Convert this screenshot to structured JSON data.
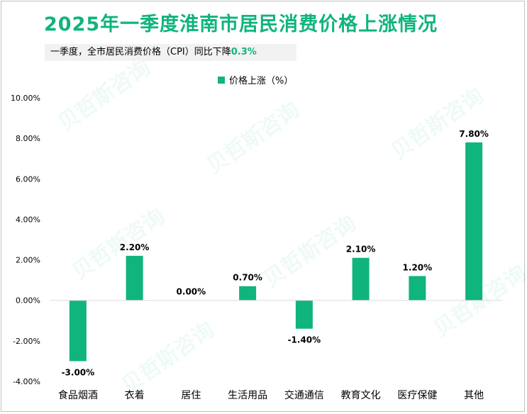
{
  "title": "2025年一季度淮南市居民消费价格上涨情况",
  "subtitle": {
    "prefix": "一季度，全市居民消费价格（CPI）同比下降",
    "value": "0.3%"
  },
  "watermark": "贝哲斯咨询",
  "colors": {
    "accent": "#10b47d",
    "bar": "#10b47d"
  },
  "chart_data": {
    "type": "bar",
    "title": "2025年一季度淮南市居民消费价格上涨情况",
    "legend": {
      "label": "价格上涨（%）",
      "position": "top-center"
    },
    "categories": [
      "食品烟酒",
      "衣着",
      "居住",
      "生活用品",
      "交通通信",
      "教育文化",
      "医疗保健",
      "其他"
    ],
    "values": [
      -3.0,
      2.2,
      0.0,
      0.7,
      -1.4,
      2.1,
      1.2,
      7.8
    ],
    "data_labels": [
      "-3.00%",
      "2.20%",
      "0.00%",
      "0.70%",
      "-1.40%",
      "2.10%",
      "1.20%",
      "7.80%"
    ],
    "ylim": [
      -4,
      10
    ],
    "yticks": [
      -4,
      -2,
      0,
      2,
      4,
      6,
      8,
      10
    ],
    "ytick_labels": [
      "-4.00%",
      "-2.00%",
      "0.00%",
      "2.00%",
      "4.00%",
      "6.00%",
      "8.00%",
      "10.00%"
    ],
    "xlabel": "",
    "ylabel": "",
    "grid": false
  }
}
